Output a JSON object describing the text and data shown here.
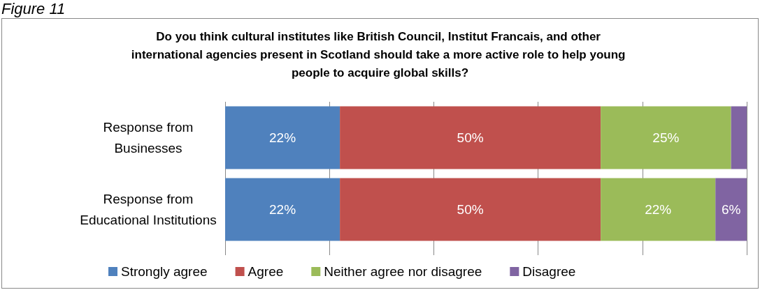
{
  "chart_data": {
    "type": "bar",
    "orientation": "horizontal",
    "stacked": true,
    "title": "Do you think cultural institutes like British Council, Institut Francais, and other international agencies present in Scotland should take a more active role to help young people to acquire global skills?",
    "annotations": [
      "Figure 11"
    ],
    "categories": [
      "Response from\nBusinesses",
      "Response from\nEducational Institutions"
    ],
    "series": [
      {
        "name": "Strongly agree",
        "color": "#4f81bd",
        "values": [
          22,
          22
        ],
        "value_labels": [
          "22%",
          "22%"
        ]
      },
      {
        "name": "Agree",
        "color": "#c0504d",
        "values": [
          50,
          50
        ],
        "value_labels": [
          "50%",
          "50%"
        ]
      },
      {
        "name": "Neither agree nor disagree",
        "color": "#9bbb59",
        "values": [
          25,
          22
        ],
        "value_labels": [
          "25%",
          "22%"
        ]
      },
      {
        "name": "Disagree",
        "color": "#8064a2",
        "values": [
          3,
          6
        ],
        "value_labels": [
          null,
          "6%"
        ]
      }
    ],
    "xlim": [
      0,
      100
    ],
    "xticks": [
      {
        "value": 0,
        "label": null
      },
      {
        "value": 20,
        "label": null
      },
      {
        "value": 40,
        "label": null
      },
      {
        "value": 60,
        "label": null
      },
      {
        "value": 80,
        "label": null
      },
      {
        "value": 100,
        "label": null
      }
    ],
    "tick_labels": "y",
    "grid": "x",
    "legend": "bottom"
  }
}
